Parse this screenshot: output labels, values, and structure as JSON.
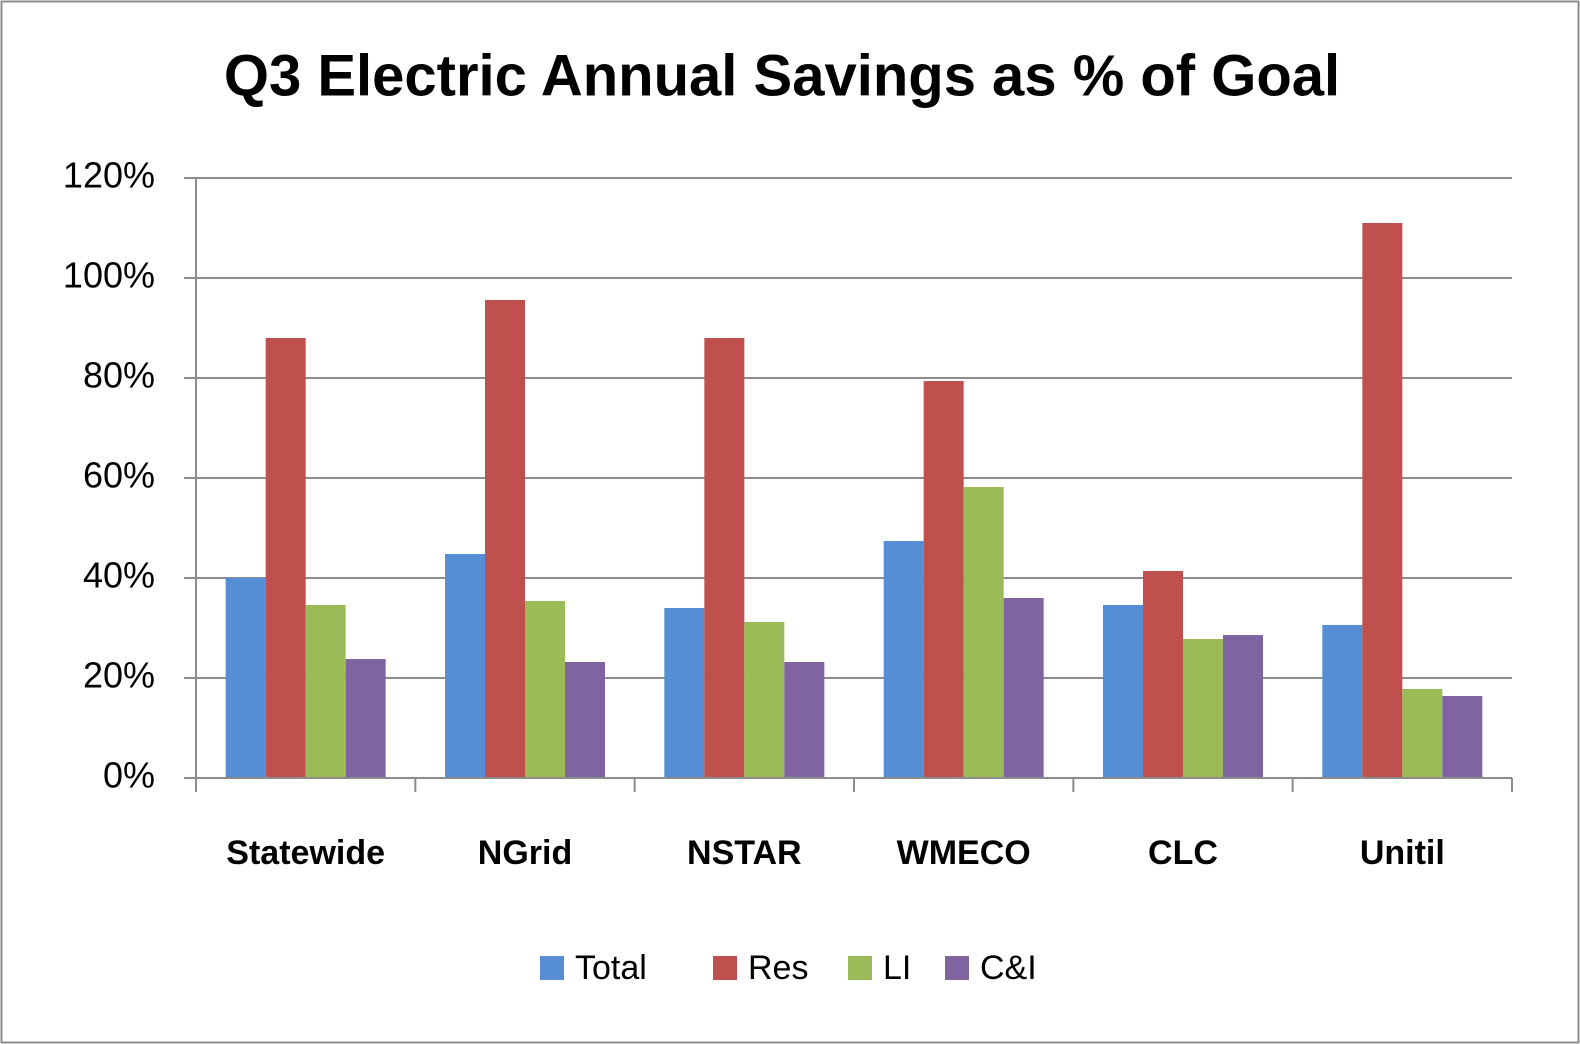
{
  "chart_data": {
    "type": "bar",
    "title": "Q3 Electric Annual Savings as % of Goal",
    "categories": [
      "Statewide",
      "NGrid",
      "NSTAR",
      "WMECO",
      "CLC",
      "Unitil"
    ],
    "series": [
      {
        "name": "Total",
        "color": "#558ed5",
        "values": [
          40,
          44.8,
          34,
          47.4,
          34.6,
          30.6
        ]
      },
      {
        "name": "Res",
        "color": "#c0504d",
        "values": [
          88,
          95.6,
          88,
          79.4,
          41.4,
          111
        ]
      },
      {
        "name": "LI",
        "color": "#9bbb59",
        "values": [
          34.6,
          35.4,
          31.2,
          58.2,
          27.8,
          17.8
        ]
      },
      {
        "name": "C&I",
        "color": "#8064a2",
        "values": [
          23.8,
          23.2,
          23.2,
          36,
          28.6,
          16.4
        ]
      }
    ],
    "ylim": [
      0,
      120
    ],
    "yticks": [
      {
        "value": 0,
        "label": "0%"
      },
      {
        "value": 20,
        "label": "20%"
      },
      {
        "value": 40,
        "label": "40%"
      },
      {
        "value": 60,
        "label": "60%"
      },
      {
        "value": 80,
        "label": "80%"
      },
      {
        "value": 100,
        "label": "100%"
      },
      {
        "value": 120,
        "label": "120%"
      }
    ],
    "grid": true,
    "legend": "bottom"
  }
}
